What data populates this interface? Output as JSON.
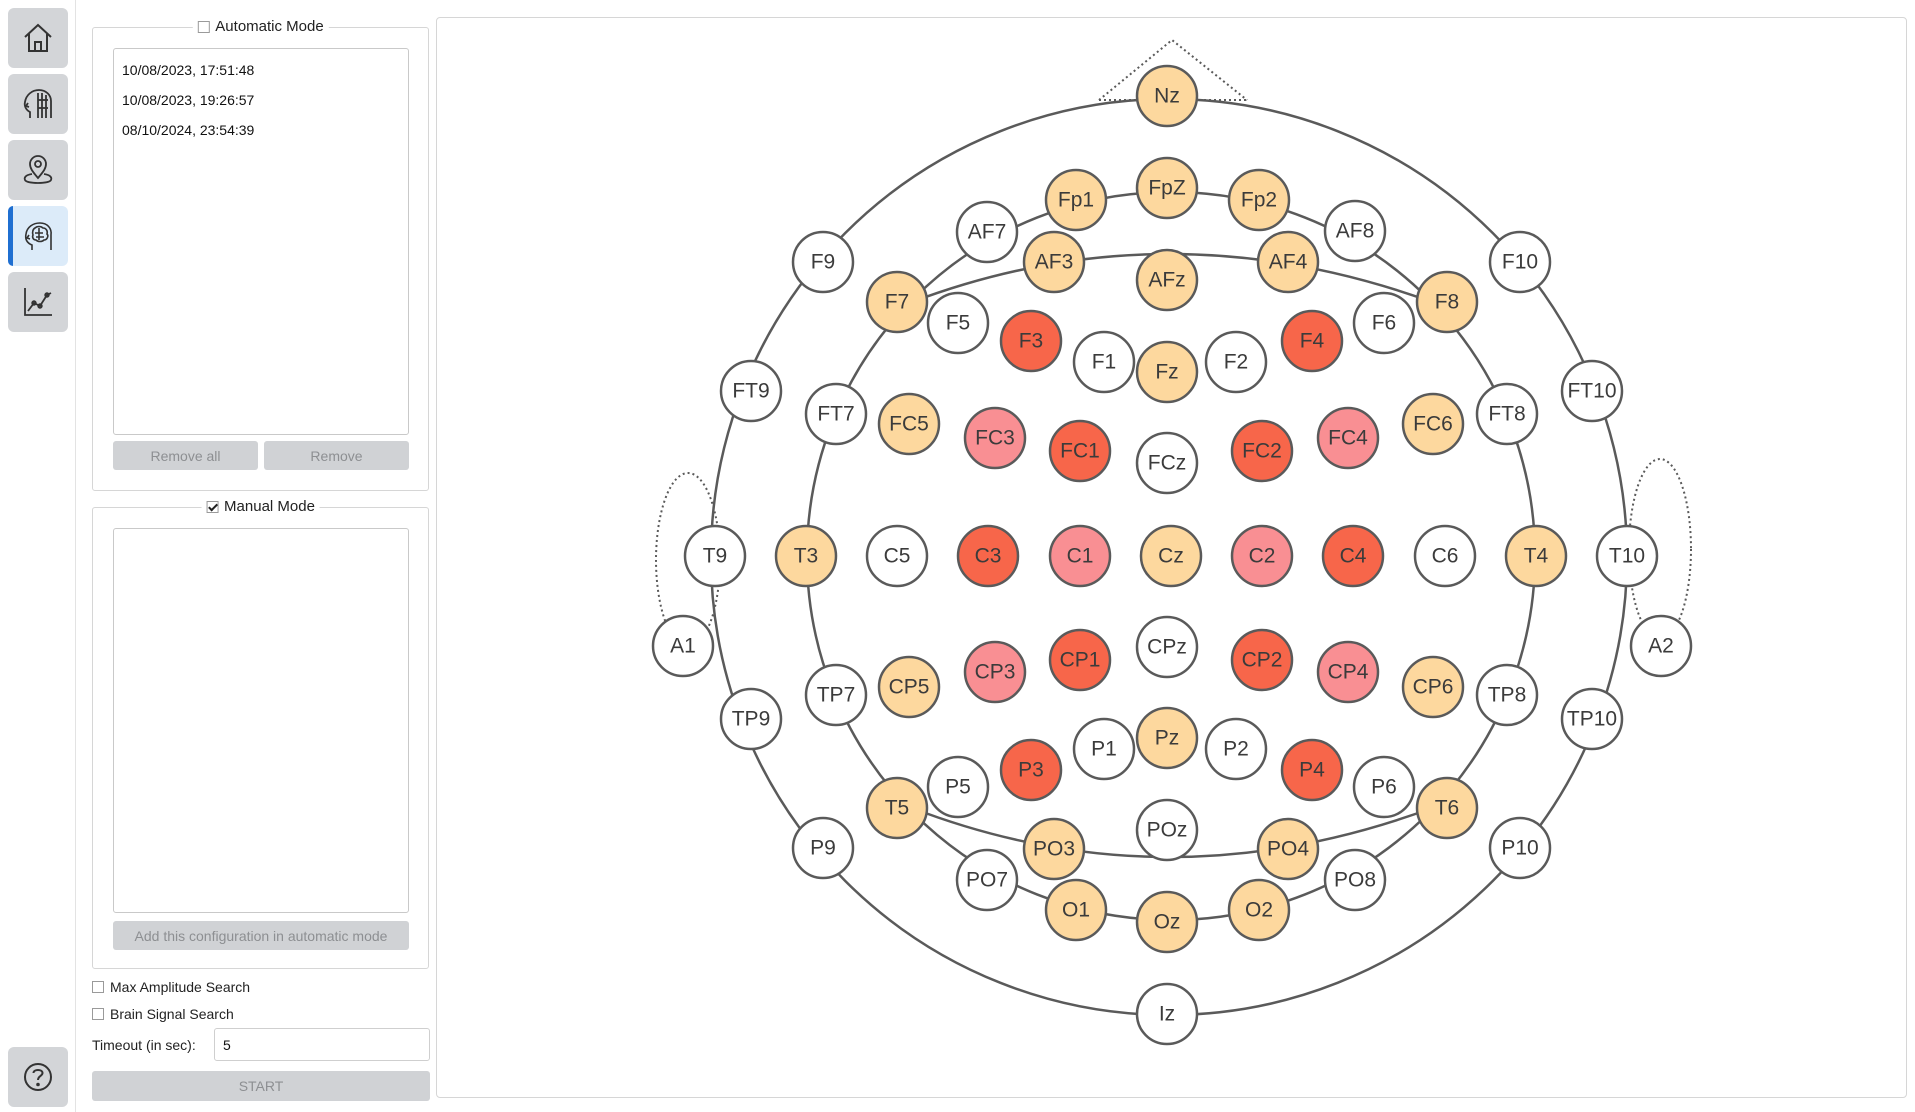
{
  "nav": {
    "items": [
      {
        "icon": "home-icon"
      },
      {
        "icon": "head-profile-icon"
      },
      {
        "icon": "map-pin-icon"
      },
      {
        "icon": "brain-head-icon",
        "active": true
      },
      {
        "icon": "line-chart-icon"
      }
    ],
    "help_icon": "question-mark-icon"
  },
  "automatic_mode": {
    "label": "Automatic Mode",
    "checked": false,
    "entries": [
      "10/08/2023, 17:51:48",
      "10/08/2023, 19:26:57",
      "08/10/2024, 23:54:39"
    ],
    "remove_all_label": "Remove all",
    "remove_label": "Remove"
  },
  "manual_mode": {
    "label": "Manual Mode",
    "checked": true,
    "add_label": "Add this configuration in automatic mode"
  },
  "options": {
    "max_amplitude_label": "Max Amplitude Search",
    "max_amplitude_checked": false,
    "brain_signal_label": "Brain Signal Search",
    "brain_signal_checked": false,
    "timeout_label": "Timeout (in sec):",
    "timeout_value": "5",
    "start_label": "START"
  },
  "colors": {
    "white": "#ffffff",
    "beige": "#fdd89e",
    "pink": "#f98f93",
    "red": "#f7664a",
    "outline": "#5a5a5a"
  },
  "electrodes": [
    {
      "label": "Nz",
      "state": "beige"
    },
    {
      "label": "Fp1",
      "state": "beige"
    },
    {
      "label": "FpZ",
      "state": "beige"
    },
    {
      "label": "Fp2",
      "state": "beige"
    },
    {
      "label": "AF7",
      "state": "white"
    },
    {
      "label": "AF3",
      "state": "beige"
    },
    {
      "label": "AFz",
      "state": "beige"
    },
    {
      "label": "AF4",
      "state": "beige"
    },
    {
      "label": "AF8",
      "state": "white"
    },
    {
      "label": "F9",
      "state": "white"
    },
    {
      "label": "F7",
      "state": "beige"
    },
    {
      "label": "F5",
      "state": "white"
    },
    {
      "label": "F3",
      "state": "red"
    },
    {
      "label": "F1",
      "state": "white"
    },
    {
      "label": "Fz",
      "state": "beige"
    },
    {
      "label": "F2",
      "state": "white"
    },
    {
      "label": "F4",
      "state": "red"
    },
    {
      "label": "F6",
      "state": "white"
    },
    {
      "label": "F8",
      "state": "beige"
    },
    {
      "label": "F10",
      "state": "white"
    },
    {
      "label": "FT9",
      "state": "white"
    },
    {
      "label": "FT7",
      "state": "white"
    },
    {
      "label": "FC5",
      "state": "beige"
    },
    {
      "label": "FC3",
      "state": "pink"
    },
    {
      "label": "FC1",
      "state": "red"
    },
    {
      "label": "FCz",
      "state": "white"
    },
    {
      "label": "FC2",
      "state": "red"
    },
    {
      "label": "FC4",
      "state": "pink"
    },
    {
      "label": "FC6",
      "state": "beige"
    },
    {
      "label": "FT8",
      "state": "white"
    },
    {
      "label": "FT10",
      "state": "white"
    },
    {
      "label": "T9",
      "state": "white"
    },
    {
      "label": "T3",
      "state": "beige"
    },
    {
      "label": "C5",
      "state": "white"
    },
    {
      "label": "C3",
      "state": "red"
    },
    {
      "label": "C1",
      "state": "pink"
    },
    {
      "label": "Cz",
      "state": "beige"
    },
    {
      "label": "C2",
      "state": "pink"
    },
    {
      "label": "C4",
      "state": "red"
    },
    {
      "label": "C6",
      "state": "white"
    },
    {
      "label": "T4",
      "state": "beige"
    },
    {
      "label": "T10",
      "state": "white"
    },
    {
      "label": "A1",
      "state": "white"
    },
    {
      "label": "A2",
      "state": "white"
    },
    {
      "label": "TP9",
      "state": "white"
    },
    {
      "label": "TP7",
      "state": "white"
    },
    {
      "label": "CP5",
      "state": "beige"
    },
    {
      "label": "CP3",
      "state": "pink"
    },
    {
      "label": "CP1",
      "state": "red"
    },
    {
      "label": "CPz",
      "state": "white"
    },
    {
      "label": "CP2",
      "state": "red"
    },
    {
      "label": "CP4",
      "state": "pink"
    },
    {
      "label": "CP6",
      "state": "beige"
    },
    {
      "label": "TP8",
      "state": "white"
    },
    {
      "label": "TP10",
      "state": "white"
    },
    {
      "label": "P9",
      "state": "white"
    },
    {
      "label": "T5",
      "state": "beige"
    },
    {
      "label": "P5",
      "state": "white"
    },
    {
      "label": "P3",
      "state": "red"
    },
    {
      "label": "P1",
      "state": "white"
    },
    {
      "label": "Pz",
      "state": "beige"
    },
    {
      "label": "P2",
      "state": "white"
    },
    {
      "label": "P4",
      "state": "red"
    },
    {
      "label": "P6",
      "state": "white"
    },
    {
      "label": "T6",
      "state": "beige"
    },
    {
      "label": "P10",
      "state": "white"
    },
    {
      "label": "PO7",
      "state": "white"
    },
    {
      "label": "PO3",
      "state": "beige"
    },
    {
      "label": "POz",
      "state": "white"
    },
    {
      "label": "PO4",
      "state": "beige"
    },
    {
      "label": "PO8",
      "state": "white"
    },
    {
      "label": "O1",
      "state": "beige"
    },
    {
      "label": "Oz",
      "state": "beige"
    },
    {
      "label": "O2",
      "state": "beige"
    },
    {
      "label": "Iz",
      "state": "white"
    }
  ]
}
